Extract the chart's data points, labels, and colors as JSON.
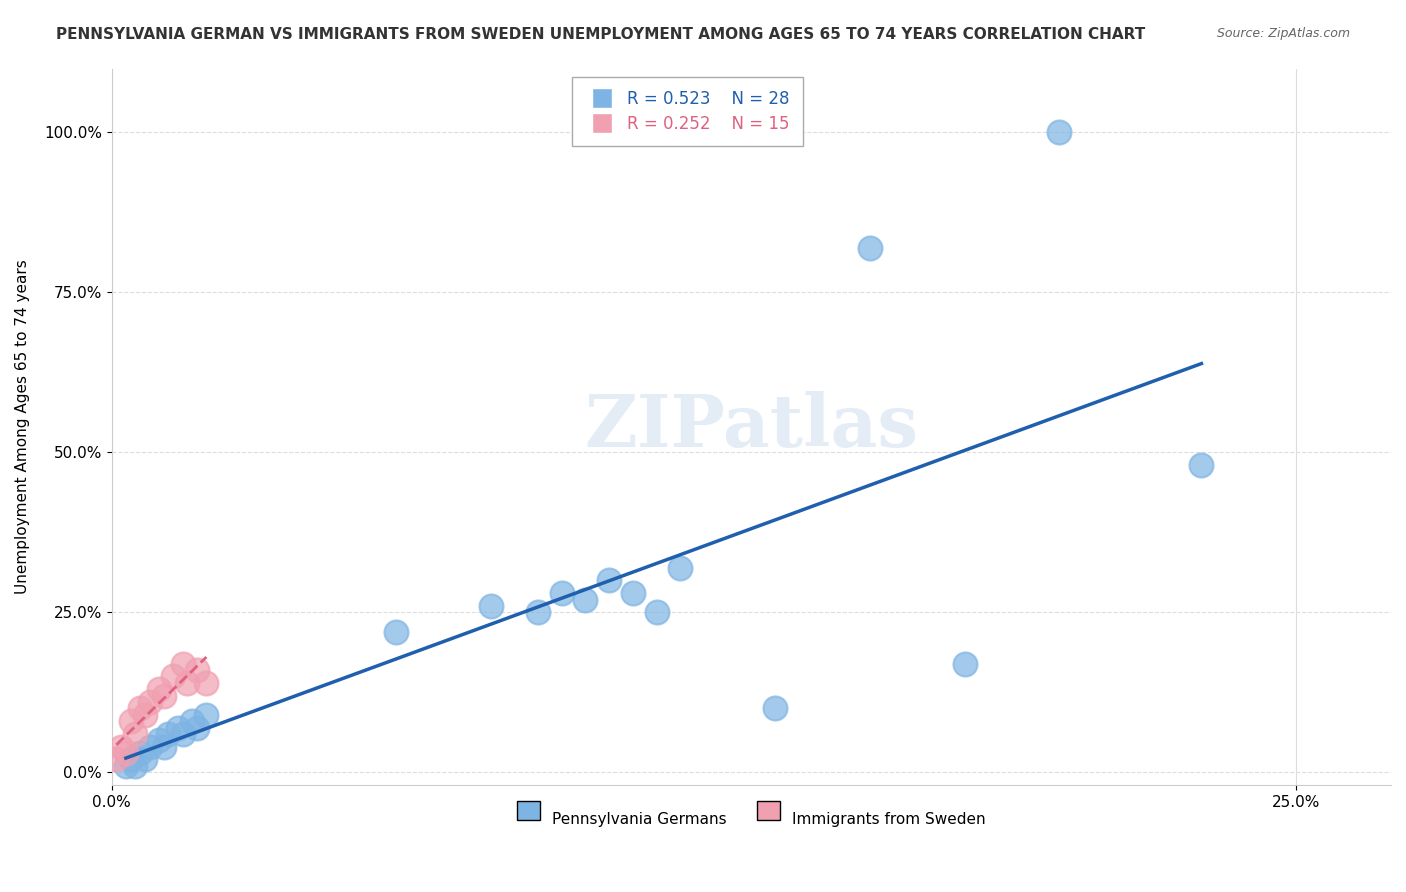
{
  "title": "PENNSYLVANIA GERMAN VS IMMIGRANTS FROM SWEDEN UNEMPLOYMENT AMONG AGES 65 TO 74 YEARS CORRELATION CHART",
  "source": "Source: ZipAtlas.com",
  "xlabel_ticks": [
    "0.0%",
    "25.0%"
  ],
  "ylabel_ticks": [
    "0.0%",
    "25.0%",
    "50.0%",
    "75.0%",
    "100.0%"
  ],
  "xlim": [
    0,
    0.27
  ],
  "ylim": [
    -0.02,
    1.1
  ],
  "ylabel": "Unemployment Among Ages 65 to 74 years",
  "legend_blue_r": "R = 0.523",
  "legend_blue_n": "N = 28",
  "legend_pink_r": "R = 0.252",
  "legend_pink_n": "N = 15",
  "legend_blue_label": "Pennsylvania Germans",
  "legend_pink_label": "Immigrants from Sweden",
  "blue_color": "#7EB4E3",
  "blue_line_color": "#1F5FAD",
  "pink_color": "#F0A0B0",
  "pink_line_color": "#E06080",
  "watermark": "ZIPatlas",
  "blue_scatter_x": [
    0.003,
    0.004,
    0.005,
    0.006,
    0.007,
    0.008,
    0.01,
    0.011,
    0.012,
    0.014,
    0.015,
    0.017,
    0.018,
    0.02,
    0.06,
    0.08,
    0.09,
    0.095,
    0.1,
    0.105,
    0.11,
    0.115,
    0.12,
    0.14,
    0.16,
    0.18,
    0.2,
    0.23
  ],
  "blue_scatter_y": [
    0.01,
    0.02,
    0.01,
    0.03,
    0.02,
    0.04,
    0.05,
    0.04,
    0.06,
    0.07,
    0.06,
    0.08,
    0.07,
    0.09,
    0.22,
    0.26,
    0.25,
    0.28,
    0.27,
    0.3,
    0.28,
    0.25,
    0.32,
    0.1,
    0.82,
    0.17,
    1.0,
    0.48
  ],
  "pink_scatter_x": [
    0.001,
    0.002,
    0.003,
    0.004,
    0.005,
    0.006,
    0.007,
    0.008,
    0.01,
    0.011,
    0.013,
    0.015,
    0.016,
    0.018,
    0.02
  ],
  "pink_scatter_y": [
    0.02,
    0.04,
    0.03,
    0.08,
    0.06,
    0.1,
    0.09,
    0.11,
    0.13,
    0.12,
    0.15,
    0.17,
    0.14,
    0.16,
    0.14
  ],
  "background_color": "#FFFFFF",
  "grid_color": "#DDDDDD",
  "title_fontsize": 11,
  "source_fontsize": 9,
  "watermark_color": "#CADDEF",
  "watermark_alpha": 0.5
}
